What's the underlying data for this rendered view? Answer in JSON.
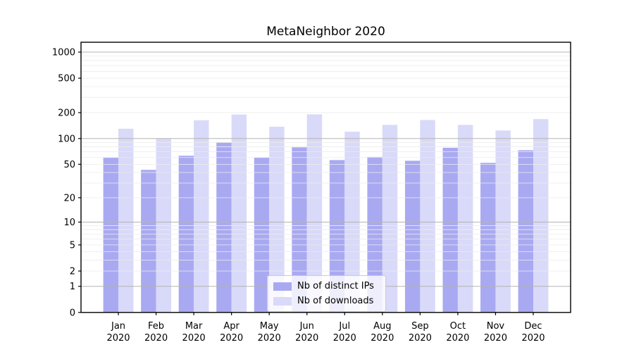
{
  "figure": {
    "background": "#ffffff"
  },
  "chart_data": {
    "type": "bar",
    "title": "MetaNeighbor 2020",
    "categories": [
      "Jan 2020",
      "Feb 2020",
      "Mar 2020",
      "Apr 2020",
      "May 2020",
      "Jun 2020",
      "Jul 2020",
      "Aug 2020",
      "Sep 2020",
      "Oct 2020",
      "Nov 2020",
      "Dec 2020"
    ],
    "series": [
      {
        "name": "Nb of distinct IPs",
        "color": "#a9a9f2",
        "values": [
          60,
          43,
          63,
          90,
          60,
          79,
          56,
          61,
          55,
          78,
          52,
          73
        ]
      },
      {
        "name": "Nb of downloads",
        "color": "#d9d9f9",
        "values": [
          130,
          100,
          163,
          190,
          137,
          191,
          120,
          144,
          164,
          144,
          124,
          168
        ]
      }
    ],
    "xlabel": "",
    "ylabel": "",
    "yscale": "log1p",
    "ylim": [
      0,
      1310
    ],
    "yticks": [
      0,
      1,
      2,
      5,
      10,
      20,
      50,
      100,
      200,
      500,
      1000
    ],
    "grid": {
      "major_values": [
        1,
        10,
        100,
        1000
      ],
      "minor_values": [
        2,
        3,
        4,
        5,
        6,
        7,
        8,
        9,
        20,
        30,
        40,
        50,
        60,
        70,
        80,
        90,
        200,
        300,
        400,
        500,
        600,
        700,
        800,
        900
      ],
      "major_color": "#b3b3b3",
      "minor_color": "#ececec",
      "grid_on_top_of_bars": true
    },
    "legend": {
      "position": "lower-center"
    },
    "text_color": "#000000",
    "spine_color": "#000000"
  }
}
